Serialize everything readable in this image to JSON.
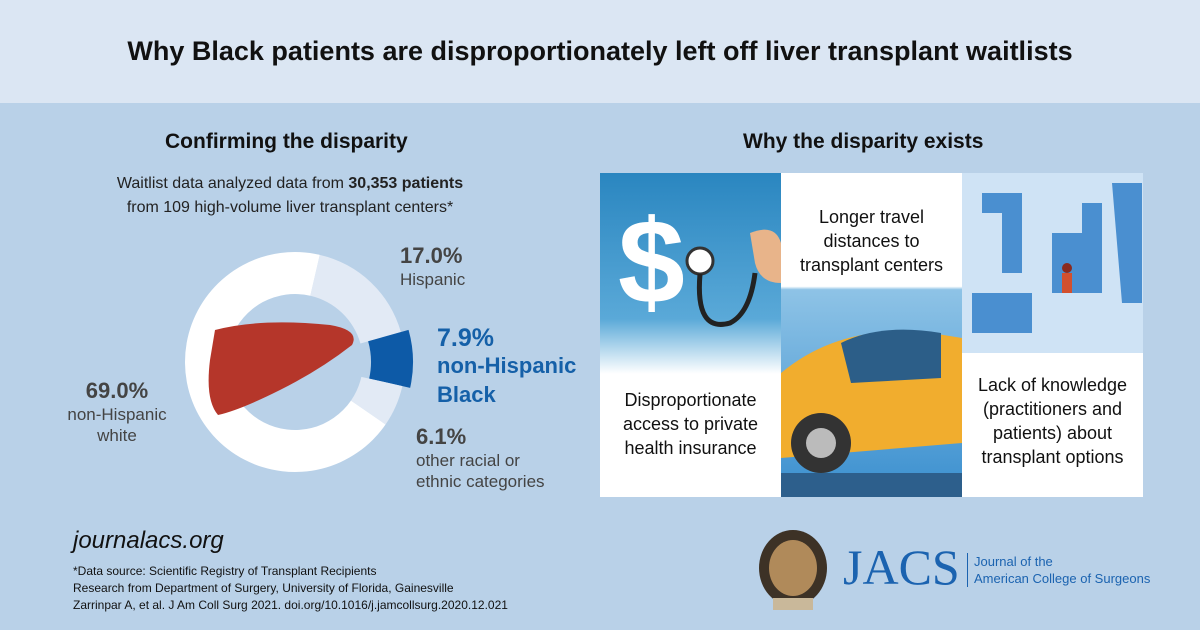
{
  "title": "Why Black patients are disproportionately left off liver transplant waitlists",
  "left": {
    "heading": "Confirming the disparity",
    "intro_pre": "Waitlist data analyzed data from ",
    "intro_bold": "30,353 patients",
    "intro_post": "from 109 high-volume liver transplant centers*"
  },
  "chart_data": {
    "type": "pie",
    "variant": "donut",
    "categories": [
      "Hispanic",
      "non-Hispanic Black",
      "other racial or ethnic categories",
      "non-Hispanic white"
    ],
    "values": [
      17.0,
      7.9,
      6.1,
      69.0
    ],
    "labels": [
      "17.0%",
      "7.9%",
      "6.1%",
      "69.0%"
    ],
    "colors": [
      "#e2eaf5",
      "#0d5aa7",
      "#e2eaf5",
      "#ffffff"
    ],
    "highlight": "non-Hispanic Black"
  },
  "right": {
    "heading": "Why the disparity exists",
    "panels": [
      "Disproportionate access to private health insurance",
      "Longer travel distances to transplant centers",
      "Lack of knowledge (practitioners and patients) about transplant options"
    ]
  },
  "footer": {
    "url": "journalacs.org",
    "notes": [
      "*Data source: Scientific Registry of Transplant Recipients",
      "Research from Department of Surgery, University of Florida, Gainesville",
      "Zarrinpar A, et al.  J Am Coll Surg 2021. doi.org/10.1016/j.jamcollsurg.2020.12.021"
    ],
    "logo": "JACS",
    "logo_sub1": "Journal of the",
    "logo_sub2": "American College of Surgeons"
  }
}
